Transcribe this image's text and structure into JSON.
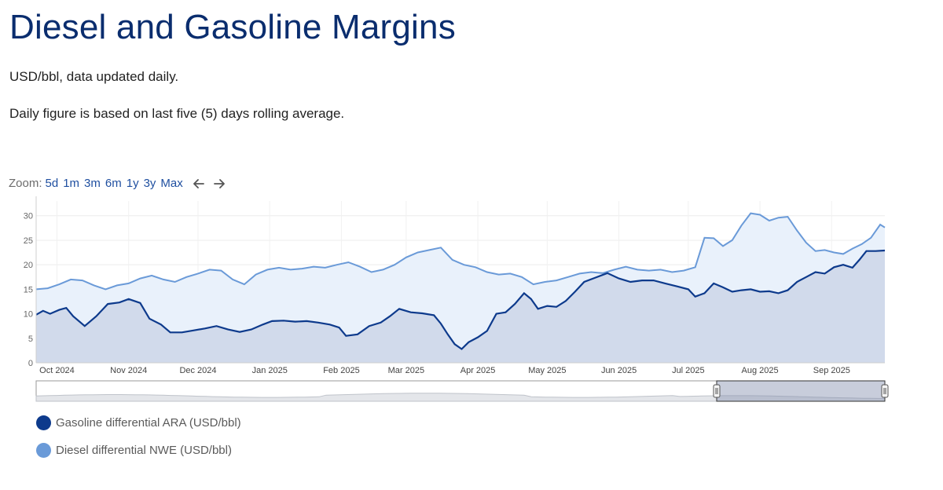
{
  "page": {
    "title": "Diesel and Gasoline Margins",
    "subtitle1": "USD/bbl, data updated daily.",
    "subtitle2": "Daily figure is based on last five (5) days rolling average."
  },
  "zoom": {
    "label": "Zoom:",
    "buttons": [
      "5d",
      "1m",
      "3m",
      "6m",
      "1y",
      "3y",
      "Max"
    ]
  },
  "colors": {
    "gasoline": "#0d3a8c",
    "diesel": "#6a9ad8",
    "gasoline_fill": "#cdd6e8",
    "diesel_fill": "#e9f1fb",
    "grid": "#ececec"
  },
  "chart_data": {
    "type": "area",
    "x_ticks": [
      "Oct 2024",
      "Nov 2024",
      "Dec 2024",
      "Jan 2025",
      "Feb 2025",
      "Mar 2025",
      "Apr 2025",
      "May 2025",
      "Jun 2025",
      "Jul 2025",
      "Aug 2025",
      "Sep 2025"
    ],
    "y_ticks": [
      0,
      5,
      10,
      15,
      20,
      25,
      30
    ],
    "ylim": [
      0,
      33
    ],
    "xrange": [
      "2024-09-22",
      "2025-09-24"
    ],
    "grid": true,
    "legend_position": "bottom-left",
    "series": [
      {
        "name": "Gasoline differential ARA (USD/bbl)",
        "points": [
          [
            "2024-09-22",
            9.8
          ],
          [
            "2024-09-25",
            10.6
          ],
          [
            "2024-09-28",
            10
          ],
          [
            "2024-10-02",
            10.8
          ],
          [
            "2024-10-05",
            11.2
          ],
          [
            "2024-10-08",
            9.5
          ],
          [
            "2024-10-13",
            7.5
          ],
          [
            "2024-10-18",
            9.5
          ],
          [
            "2024-10-23",
            12
          ],
          [
            "2024-10-28",
            12.3
          ],
          [
            "2024-11-01",
            13
          ],
          [
            "2024-11-06",
            12.2
          ],
          [
            "2024-11-10",
            9
          ],
          [
            "2024-11-15",
            7.8
          ],
          [
            "2024-11-19",
            6.2
          ],
          [
            "2024-11-24",
            6.2
          ],
          [
            "2024-11-29",
            6.6
          ],
          [
            "2024-12-04",
            7
          ],
          [
            "2024-12-09",
            7.5
          ],
          [
            "2024-12-14",
            6.8
          ],
          [
            "2024-12-19",
            6.3
          ],
          [
            "2024-12-24",
            6.8
          ],
          [
            "2024-12-29",
            7.8
          ],
          [
            "2025-01-02",
            8.5
          ],
          [
            "2025-01-07",
            8.6
          ],
          [
            "2025-01-12",
            8.4
          ],
          [
            "2025-01-17",
            8.5
          ],
          [
            "2025-01-22",
            8.2
          ],
          [
            "2025-01-27",
            7.8
          ],
          [
            "2025-01-31",
            7.2
          ],
          [
            "2025-02-03",
            5.5
          ],
          [
            "2025-02-08",
            5.8
          ],
          [
            "2025-02-13",
            7.5
          ],
          [
            "2025-02-18",
            8.2
          ],
          [
            "2025-02-22",
            9.5
          ],
          [
            "2025-02-26",
            11
          ],
          [
            "2025-03-03",
            10.3
          ],
          [
            "2025-03-08",
            10.1
          ],
          [
            "2025-03-13",
            9.7
          ],
          [
            "2025-03-16",
            8
          ],
          [
            "2025-03-19",
            5.8
          ],
          [
            "2025-03-22",
            3.8
          ],
          [
            "2025-03-25",
            2.8
          ],
          [
            "2025-03-28",
            4.2
          ],
          [
            "2025-04-01",
            5.2
          ],
          [
            "2025-04-05",
            6.5
          ],
          [
            "2025-04-09",
            10
          ],
          [
            "2025-04-13",
            10.3
          ],
          [
            "2025-04-17",
            12
          ],
          [
            "2025-04-21",
            14.2
          ],
          [
            "2025-04-24",
            13
          ],
          [
            "2025-04-27",
            11
          ],
          [
            "2025-05-01",
            11.6
          ],
          [
            "2025-05-05",
            11.4
          ],
          [
            "2025-05-09",
            12.6
          ],
          [
            "2025-05-13",
            14.5
          ],
          [
            "2025-05-17",
            16.5
          ],
          [
            "2025-05-22",
            17.4
          ],
          [
            "2025-05-27",
            18.3
          ],
          [
            "2025-06-01",
            17.2
          ],
          [
            "2025-06-06",
            16.5
          ],
          [
            "2025-06-11",
            16.8
          ],
          [
            "2025-06-16",
            16.8
          ],
          [
            "2025-06-21",
            16.2
          ],
          [
            "2025-06-26",
            15.6
          ],
          [
            "2025-07-01",
            15
          ],
          [
            "2025-07-04",
            13.5
          ],
          [
            "2025-07-08",
            14.2
          ],
          [
            "2025-07-12",
            16.2
          ],
          [
            "2025-07-16",
            15.4
          ],
          [
            "2025-07-20",
            14.5
          ],
          [
            "2025-07-24",
            14.8
          ],
          [
            "2025-07-28",
            15
          ],
          [
            "2025-08-01",
            14.5
          ],
          [
            "2025-08-05",
            14.6
          ],
          [
            "2025-08-09",
            14.2
          ],
          [
            "2025-08-13",
            14.8
          ],
          [
            "2025-08-17",
            16.5
          ],
          [
            "2025-08-21",
            17.5
          ],
          [
            "2025-08-25",
            18.5
          ],
          [
            "2025-08-29",
            18.2
          ],
          [
            "2025-09-02",
            19.5
          ],
          [
            "2025-09-06",
            20
          ],
          [
            "2025-09-10",
            19.4
          ],
          [
            "2025-09-13",
            21
          ],
          [
            "2025-09-16",
            22.8
          ],
          [
            "2025-09-20",
            22.8
          ],
          [
            "2025-09-24",
            22.9
          ]
        ]
      },
      {
        "name": "Diesel differential NWE (USD/bbl)",
        "points": [
          [
            "2024-09-22",
            15
          ],
          [
            "2024-09-27",
            15.2
          ],
          [
            "2024-10-02",
            16
          ],
          [
            "2024-10-07",
            17
          ],
          [
            "2024-10-12",
            16.8
          ],
          [
            "2024-10-17",
            15.8
          ],
          [
            "2024-10-22",
            15
          ],
          [
            "2024-10-27",
            15.8
          ],
          [
            "2024-11-01",
            16.2
          ],
          [
            "2024-11-06",
            17.2
          ],
          [
            "2024-11-11",
            17.8
          ],
          [
            "2024-11-16",
            17
          ],
          [
            "2024-11-21",
            16.5
          ],
          [
            "2024-11-26",
            17.5
          ],
          [
            "2024-12-01",
            18.2
          ],
          [
            "2024-12-06",
            19
          ],
          [
            "2024-12-11",
            18.8
          ],
          [
            "2024-12-16",
            17
          ],
          [
            "2024-12-21",
            16
          ],
          [
            "2024-12-26",
            18
          ],
          [
            "2024-12-31",
            19
          ],
          [
            "2025-01-05",
            19.4
          ],
          [
            "2025-01-10",
            19
          ],
          [
            "2025-01-15",
            19.2
          ],
          [
            "2025-01-20",
            19.6
          ],
          [
            "2025-01-25",
            19.4
          ],
          [
            "2025-01-30",
            20
          ],
          [
            "2025-02-04",
            20.5
          ],
          [
            "2025-02-09",
            19.6
          ],
          [
            "2025-02-14",
            18.5
          ],
          [
            "2025-02-19",
            19
          ],
          [
            "2025-02-24",
            20
          ],
          [
            "2025-03-01",
            21.5
          ],
          [
            "2025-03-06",
            22.5
          ],
          [
            "2025-03-11",
            23
          ],
          [
            "2025-03-16",
            23.5
          ],
          [
            "2025-03-21",
            21
          ],
          [
            "2025-03-26",
            20
          ],
          [
            "2025-03-31",
            19.5
          ],
          [
            "2025-04-05",
            18.5
          ],
          [
            "2025-04-10",
            18
          ],
          [
            "2025-04-15",
            18.2
          ],
          [
            "2025-04-20",
            17.5
          ],
          [
            "2025-04-25",
            16
          ],
          [
            "2025-04-30",
            16.5
          ],
          [
            "2025-05-05",
            16.8
          ],
          [
            "2025-05-10",
            17.5
          ],
          [
            "2025-05-15",
            18.2
          ],
          [
            "2025-05-20",
            18.5
          ],
          [
            "2025-05-25",
            18.3
          ],
          [
            "2025-05-30",
            19
          ],
          [
            "2025-06-04",
            19.6
          ],
          [
            "2025-06-09",
            19
          ],
          [
            "2025-06-14",
            18.8
          ],
          [
            "2025-06-19",
            19
          ],
          [
            "2025-06-24",
            18.5
          ],
          [
            "2025-06-29",
            18.8
          ],
          [
            "2025-07-04",
            19.5
          ],
          [
            "2025-07-08",
            25.5
          ],
          [
            "2025-07-12",
            25.4
          ],
          [
            "2025-07-16",
            23.8
          ],
          [
            "2025-07-20",
            25
          ],
          [
            "2025-07-24",
            28
          ],
          [
            "2025-07-28",
            30.5
          ],
          [
            "2025-08-01",
            30.2
          ],
          [
            "2025-08-05",
            29
          ],
          [
            "2025-08-09",
            29.6
          ],
          [
            "2025-08-13",
            29.8
          ],
          [
            "2025-08-17",
            27
          ],
          [
            "2025-08-21",
            24.5
          ],
          [
            "2025-08-25",
            22.8
          ],
          [
            "2025-08-29",
            23
          ],
          [
            "2025-09-02",
            22.5
          ],
          [
            "2025-09-06",
            22.2
          ],
          [
            "2025-09-10",
            23.3
          ],
          [
            "2025-09-14",
            24.2
          ],
          [
            "2025-09-18",
            25.5
          ],
          [
            "2025-09-22",
            28.2
          ],
          [
            "2025-09-24",
            27.6
          ]
        ]
      }
    ]
  }
}
